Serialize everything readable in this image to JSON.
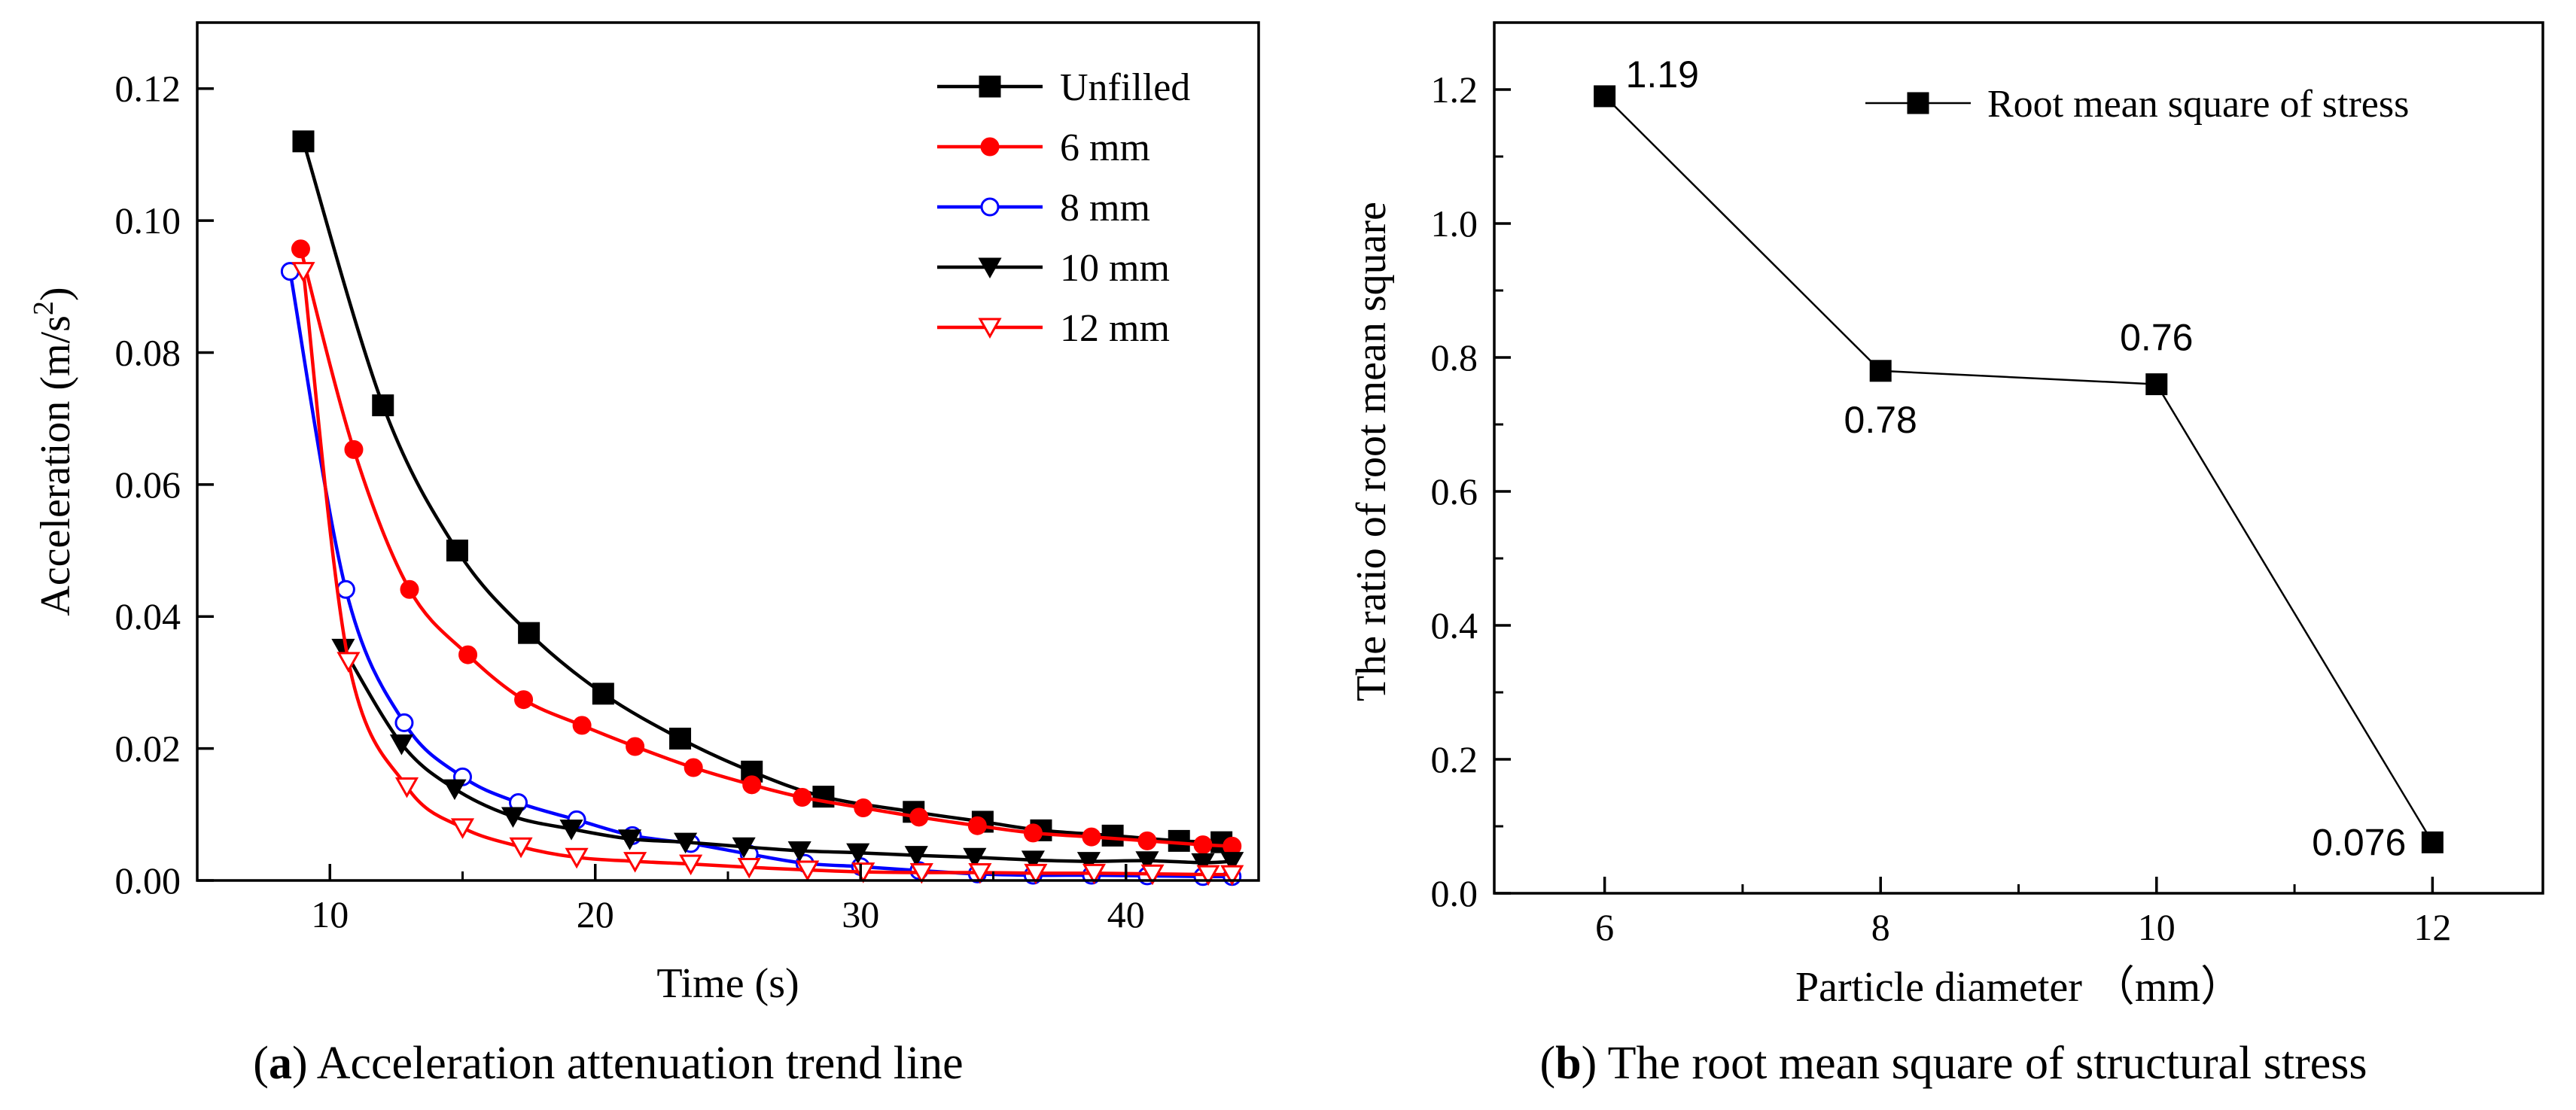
{
  "chart_data": [
    {
      "type": "line",
      "id": "a",
      "caption_letter": "a",
      "caption_text": "Acceleration attenuation trend line",
      "xlabel": "Time (s)",
      "ylabel": "Acceleration (m/s",
      "ylabel_sup": "2",
      "ylabel_end": ")",
      "xlim": [
        5,
        45
      ],
      "ylim": [
        0,
        0.13
      ],
      "xticks": [
        10,
        20,
        30,
        40
      ],
      "xtick_labels": [
        "10",
        "20",
        "30",
        "40"
      ],
      "yticks": [
        0,
        0.02,
        0.04,
        0.06,
        0.08,
        0.1,
        0.12
      ],
      "ytick_labels": [
        "0.00",
        "0.02",
        "0.04",
        "0.06",
        "0.08",
        "0.10",
        "0.12"
      ],
      "legend_position": "top-right",
      "series": [
        {
          "name": "Unfilled",
          "color": "#000000",
          "marker": "square",
          "filled": true,
          "x": [
            9.0,
            12.0,
            14.8,
            17.5,
            20.3,
            23.2,
            25.9,
            28.6,
            32.0,
            34.6,
            36.8,
            39.5,
            42.0,
            43.6
          ],
          "y": [
            0.112,
            0.072,
            0.05,
            0.0375,
            0.0283,
            0.0215,
            0.0165,
            0.0127,
            0.0104,
            0.0089,
            0.0076,
            0.0068,
            0.006,
            0.0058
          ]
        },
        {
          "name": "6 mm",
          "color": "#ff0000",
          "marker": "circle",
          "filled": true,
          "x": [
            8.9,
            10.9,
            13.0,
            15.2,
            17.3,
            19.5,
            21.5,
            23.7,
            25.9,
            27.8,
            30.1,
            32.2,
            34.4,
            36.5,
            38.7,
            40.8,
            42.9,
            44.0
          ],
          "y": [
            0.0957,
            0.0653,
            0.0441,
            0.0342,
            0.0274,
            0.0235,
            0.0203,
            0.0171,
            0.0145,
            0.0126,
            0.011,
            0.0096,
            0.0083,
            0.0072,
            0.0066,
            0.006,
            0.0054,
            0.0052
          ]
        },
        {
          "name": "8 mm",
          "color": "#0000ff",
          "marker": "circle",
          "filled": false,
          "x": [
            8.5,
            10.6,
            12.8,
            15.0,
            17.1,
            19.3,
            21.4,
            23.6,
            25.8,
            27.9,
            30.0,
            32.2,
            34.4,
            36.5,
            38.7,
            40.8,
            42.9,
            44.0
          ],
          "y": [
            0.0923,
            0.0441,
            0.0239,
            0.0157,
            0.0118,
            0.0092,
            0.0068,
            0.0056,
            0.004,
            0.0026,
            0.0021,
            0.0015,
            0.001,
            0.0008,
            0.0008,
            0.0007,
            0.0006,
            0.0006
          ]
        },
        {
          "name": "10 mm",
          "color": "#000000",
          "marker": "triangle-down",
          "filled": true,
          "x": [
            10.5,
            12.7,
            14.7,
            16.9,
            19.1,
            21.3,
            23.4,
            25.6,
            27.7,
            29.9,
            32.1,
            34.3,
            36.5,
            38.6,
            40.8,
            42.9,
            44.0
          ],
          "y": [
            0.0352,
            0.0207,
            0.0139,
            0.0097,
            0.0078,
            0.0063,
            0.0058,
            0.0051,
            0.0045,
            0.0042,
            0.0038,
            0.0035,
            0.0031,
            0.0029,
            0.003,
            0.0027,
            0.0029
          ]
        },
        {
          "name": "12 mm",
          "color": "#ff0000",
          "marker": "triangle-down",
          "filled": false,
          "x": [
            9.0,
            10.7,
            12.9,
            15.0,
            17.2,
            19.3,
            21.5,
            23.6,
            25.8,
            28.0,
            30.1,
            32.3,
            34.5,
            36.6,
            38.8,
            41.0,
            43.1,
            44.0
          ],
          "y": [
            0.0923,
            0.0332,
            0.0142,
            0.008,
            0.0051,
            0.0035,
            0.0029,
            0.0025,
            0.002,
            0.0016,
            0.0013,
            0.0012,
            0.0012,
            0.0011,
            0.0011,
            0.001,
            0.0009,
            0.0009
          ]
        }
      ]
    },
    {
      "type": "line",
      "id": "b",
      "caption_letter": "b",
      "caption_text": "The root mean square of structural stress",
      "xlabel": "Particle diameter （mm）",
      "ylabel": "The ratio of root mean square",
      "xlim": [
        5.2,
        12.8
      ],
      "ylim": [
        0,
        1.3
      ],
      "xticks": [
        6,
        8,
        10,
        12
      ],
      "xtick_labels": [
        "6",
        "8",
        "10",
        "12"
      ],
      "yticks": [
        0,
        0.2,
        0.4,
        0.6,
        0.8,
        1.0,
        1.2
      ],
      "ytick_labels": [
        "0.0",
        "0.2",
        "0.4",
        "0.6",
        "0.8",
        "1.0",
        "1.2"
      ],
      "legend_position": "top-right",
      "series": [
        {
          "name": "Root mean square of stress",
          "color": "#000000",
          "marker": "square",
          "filled": true,
          "x": [
            6,
            8,
            10,
            12
          ],
          "y": [
            1.19,
            0.78,
            0.76,
            0.076
          ],
          "labels": [
            "1.19",
            "0.78",
            "0.76",
            "0.076"
          ]
        }
      ]
    }
  ]
}
